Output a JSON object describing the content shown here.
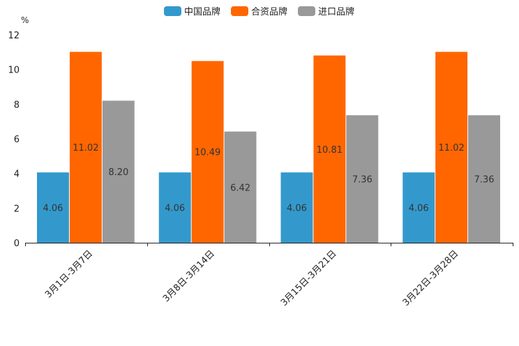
{
  "chart_data": {
    "type": "bar",
    "unit_label": "%",
    "categories": [
      "3月1日-3月7日",
      "3月8日-3月14日",
      "3月15日-3月21日",
      "3月22日-3月28日"
    ],
    "series": [
      {
        "name": "中国品牌",
        "color": "#3399cc",
        "values": [
          4.06,
          4.06,
          4.06,
          4.06
        ],
        "labels": [
          "4.06",
          "4.06",
          "4.06",
          "4.06"
        ]
      },
      {
        "name": "合资品牌",
        "color": "#ff6600",
        "values": [
          11.02,
          10.49,
          10.81,
          11.02
        ],
        "labels": [
          "11.02",
          "10.49",
          "10.81",
          "11.02"
        ]
      },
      {
        "name": "进口品牌",
        "color": "#999999",
        "values": [
          8.2,
          6.42,
          7.36,
          7.36
        ],
        "labels": [
          "8.20",
          "6.42",
          "7.36",
          "7.36"
        ]
      }
    ],
    "ylim": [
      0,
      12
    ],
    "yticks": [
      0,
      2,
      4,
      6,
      8,
      10,
      12
    ],
    "ytick_labels": [
      "0",
      "2",
      "4",
      "6",
      "8",
      "10",
      "12"
    ],
    "legend_position": "top-center"
  }
}
